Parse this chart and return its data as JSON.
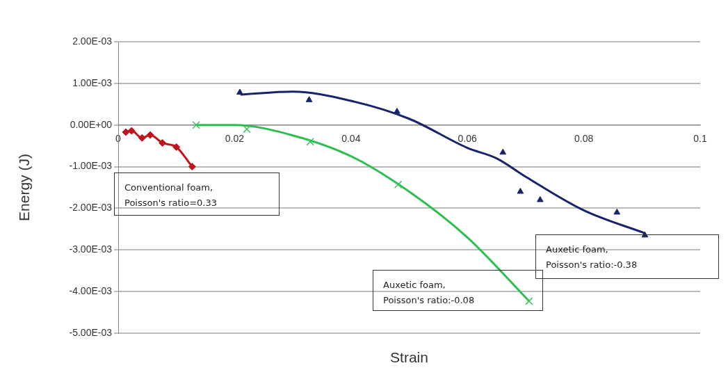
{
  "chart_data": {
    "type": "scatter",
    "xlabel": "Strain",
    "ylabel": "Energy (J)",
    "xlim": [
      0,
      0.1
    ],
    "xticks": [
      0,
      0.02,
      0.04,
      0.06,
      0.08,
      0.1
    ],
    "ylim": [
      -0.005,
      0.002
    ],
    "yticks": [
      {
        "value": 0.002,
        "label": "2.00E-03"
      },
      {
        "value": 0.001,
        "label": "1.00E-03"
      },
      {
        "value": 0,
        "label": "0.00E+00"
      },
      {
        "value": -0.001,
        "label": "-1.00E-03"
      },
      {
        "value": -0.002,
        "label": "-2.00E-03"
      },
      {
        "value": -0.003,
        "label": "-3.00E-03"
      },
      {
        "value": -0.004,
        "label": "-4.00E-03"
      },
      {
        "value": -0.005,
        "label": "-5.00E-03"
      }
    ],
    "grid": "y",
    "legend": false,
    "series": [
      {
        "type": "line",
        "color": "#c0141c",
        "marker": "diamond",
        "x": [
          0.0013,
          0.0023,
          0.0041,
          0.0055,
          0.0076,
          0.01,
          0.0127
        ],
        "values": [
          -0.00017,
          -0.00014,
          -0.00031,
          -0.00024,
          -0.00043,
          -0.00053,
          -0.001
        ]
      },
      {
        "color": "#17246b",
        "marker": "triangle",
        "x": [
          0.0209,
          0.0328,
          0.0479,
          0.0661,
          0.0691,
          0.0725,
          0.0857,
          0.0905
        ],
        "values": [
          0.00078,
          0.0006,
          0.00032,
          -0.00066,
          -0.0016,
          -0.0018,
          -0.0021,
          -0.00265
        ]
      },
      {
        "type": "line",
        "color": "#17246b",
        "marker": "none",
        "x": [
          0.021,
          0.03,
          0.04,
          0.05,
          0.06,
          0.065,
          0.07,
          0.08,
          0.0905
        ],
        "values": [
          0.00073,
          0.0008,
          0.00058,
          0.00015,
          -0.00055,
          -0.0008,
          -0.00124,
          -0.00205,
          -0.0026
        ]
      },
      {
        "color": "#3ec060",
        "marker": "cross",
        "x": [
          0.0134,
          0.0221,
          0.033,
          0.0481,
          0.0706
        ],
        "values": [
          0,
          -0.0001,
          -0.0004,
          -0.00143,
          -0.00423
        ]
      },
      {
        "type": "line",
        "color": "#2cbf4f",
        "marker": "none",
        "x": [
          0.0134,
          0.02,
          0.03,
          0.04,
          0.05,
          0.06,
          0.0706
        ],
        "values": [
          0,
          0,
          -0.00025,
          -0.00075,
          -0.0016,
          -0.0027,
          -0.00423
        ]
      }
    ],
    "annotations": [
      "Conventional foam,\nPoisson's ratio=0.33",
      "Auxetic foam,\nPoisson's ratio:-0.08",
      "Auxetic foam,\nPoisson's ratio:-0.38"
    ]
  }
}
